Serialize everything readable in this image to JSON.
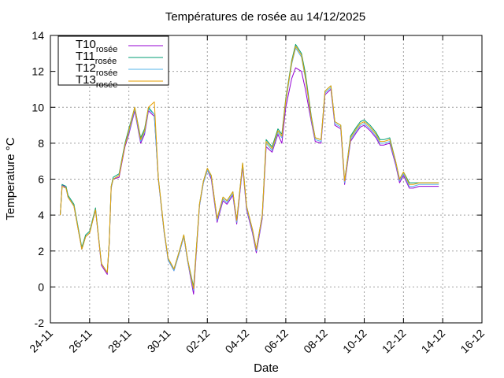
{
  "chart_data": {
    "type": "line",
    "title": "Températures de rosée au 14/12/2025",
    "xlabel": "Date",
    "ylabel": "Temperature °C",
    "ylim": [
      -2,
      14
    ],
    "yticks": [
      "-2",
      "0",
      "2",
      "4",
      "6",
      "8",
      "10",
      "12",
      "14"
    ],
    "xlim": [
      "24-11",
      "16-12"
    ],
    "xticks": [
      "24-11",
      "26-11",
      "28-11",
      "30-11",
      "02-12",
      "04-12",
      "06-12",
      "08-12",
      "10-12",
      "12-12",
      "14-12",
      "16-12"
    ],
    "grid": true,
    "legend_position": "top-left",
    "x": [
      24.5,
      24.6,
      24.8,
      24.9,
      25.2,
      25.6,
      25.8,
      26.0,
      26.3,
      26.6,
      26.9,
      27.0,
      27.1,
      27.2,
      27.5,
      27.8,
      28.0,
      28.3,
      28.6,
      28.8,
      29.0,
      29.3,
      29.5,
      29.8,
      30.0,
      30.3,
      30.6,
      30.8,
      31.0,
      31.3,
      31.6,
      31.8,
      32.0,
      32.2,
      32.5,
      32.8,
      33.0,
      33.3,
      33.5,
      33.8,
      34.0,
      34.3,
      34.5,
      34.8,
      35.0,
      35.3,
      35.6,
      35.8,
      36.0,
      36.3,
      36.5,
      36.8,
      37.0,
      37.3,
      37.5,
      37.8,
      38.0,
      38.3,
      38.5,
      38.8,
      39.0,
      39.3,
      39.6,
      39.8,
      40.0,
      40.3,
      40.6,
      40.8,
      41.0,
      41.3,
      41.6,
      41.8,
      42.0,
      42.3,
      42.5,
      42.8,
      43.0,
      43.3,
      43.6,
      43.8
    ],
    "series": [
      {
        "name": "T10",
        "name_sub": "rosée",
        "color": "#9400d3",
        "values": [
          4.0,
          5.7,
          5.5,
          5.0,
          4.5,
          2.1,
          2.8,
          3.0,
          4.3,
          1.2,
          0.7,
          2.4,
          5.5,
          6.0,
          6.1,
          7.8,
          8.5,
          9.8,
          8.0,
          8.5,
          9.8,
          9.5,
          6.0,
          3.0,
          1.5,
          0.9,
          2.0,
          2.8,
          1.4,
          -0.4,
          4.5,
          5.8,
          6.5,
          6.0,
          3.6,
          4.8,
          4.6,
          5.1,
          3.5,
          6.7,
          4.3,
          3.0,
          1.9,
          3.8,
          7.8,
          7.5,
          8.5,
          8.0,
          10.0,
          11.6,
          12.2,
          12.0,
          11.0,
          9.2,
          8.1,
          8.0,
          10.7,
          11.0,
          9.0,
          8.8,
          5.7,
          8.1,
          8.6,
          8.9,
          9.0,
          8.7,
          8.3,
          7.9,
          7.9,
          8.0,
          6.8,
          5.8,
          6.2,
          5.5,
          5.5,
          5.6,
          5.6,
          5.6,
          5.6,
          5.6
        ]
      },
      {
        "name": "T11",
        "name_sub": "rosée",
        "color": "#009e73",
        "values": [
          4.0,
          5.7,
          5.6,
          5.1,
          4.6,
          2.2,
          2.9,
          3.1,
          4.4,
          1.3,
          0.8,
          2.5,
          5.6,
          6.1,
          6.3,
          8.0,
          8.8,
          10.0,
          8.3,
          8.8,
          10.0,
          9.6,
          6.1,
          3.1,
          1.6,
          1.0,
          2.1,
          2.9,
          1.5,
          0.0,
          4.6,
          5.9,
          6.6,
          6.2,
          3.8,
          5.0,
          4.8,
          5.3,
          3.7,
          6.9,
          4.5,
          3.2,
          2.1,
          4.0,
          8.2,
          7.8,
          8.8,
          8.5,
          10.5,
          12.6,
          13.5,
          13.0,
          11.9,
          9.5,
          8.3,
          8.2,
          10.9,
          11.2,
          9.2,
          9.0,
          5.9,
          8.4,
          8.9,
          9.2,
          9.3,
          9.0,
          8.6,
          8.2,
          8.2,
          8.3,
          7.0,
          6.0,
          6.4,
          5.8,
          5.8,
          5.8,
          5.8,
          5.8,
          5.8,
          5.8
        ]
      },
      {
        "name": "T12",
        "name_sub": "rosée",
        "color": "#56b4e9",
        "values": [
          4.0,
          5.6,
          5.5,
          5.0,
          4.5,
          2.1,
          2.8,
          3.0,
          4.3,
          1.3,
          0.8,
          2.4,
          5.5,
          6.0,
          6.2,
          7.9,
          8.6,
          9.9,
          8.1,
          8.6,
          9.9,
          9.6,
          6.0,
          3.0,
          1.5,
          0.9,
          2.0,
          2.8,
          1.4,
          -0.2,
          4.5,
          5.8,
          6.5,
          6.1,
          3.7,
          4.9,
          4.7,
          5.2,
          3.6,
          6.8,
          4.4,
          3.1,
          2.0,
          3.9,
          8.0,
          7.6,
          8.6,
          8.3,
          10.3,
          12.4,
          13.3,
          12.8,
          11.6,
          9.3,
          8.2,
          8.1,
          10.8,
          11.1,
          9.1,
          8.9,
          5.8,
          8.2,
          8.7,
          9.0,
          9.1,
          8.8,
          8.4,
          8.0,
          8.0,
          8.1,
          6.9,
          5.9,
          6.3,
          5.6,
          5.6,
          5.7,
          5.7,
          5.7,
          5.7,
          5.7
        ]
      },
      {
        "name": "T13",
        "name_sub": "rosée",
        "color": "#e69f00",
        "values": [
          4.0,
          5.6,
          5.5,
          5.0,
          4.5,
          2.1,
          2.8,
          3.0,
          4.3,
          1.3,
          0.8,
          2.5,
          5.6,
          6.0,
          6.2,
          7.9,
          8.7,
          10.0,
          8.2,
          8.7,
          10.0,
          10.3,
          6.1,
          3.1,
          1.6,
          1.0,
          2.1,
          2.9,
          1.5,
          -0.1,
          4.6,
          5.9,
          6.6,
          6.2,
          3.8,
          5.0,
          4.8,
          5.3,
          3.7,
          6.9,
          4.5,
          3.2,
          2.1,
          4.0,
          8.1,
          7.7,
          8.7,
          8.4,
          10.4,
          12.5,
          13.4,
          12.9,
          11.7,
          9.4,
          8.3,
          8.2,
          10.9,
          11.2,
          9.2,
          9.0,
          5.9,
          8.3,
          8.8,
          9.1,
          9.2,
          8.9,
          8.5,
          8.1,
          8.1,
          8.2,
          7.0,
          6.0,
          6.4,
          5.7,
          5.7,
          5.8,
          5.8,
          5.8,
          5.8,
          5.8
        ]
      }
    ]
  }
}
